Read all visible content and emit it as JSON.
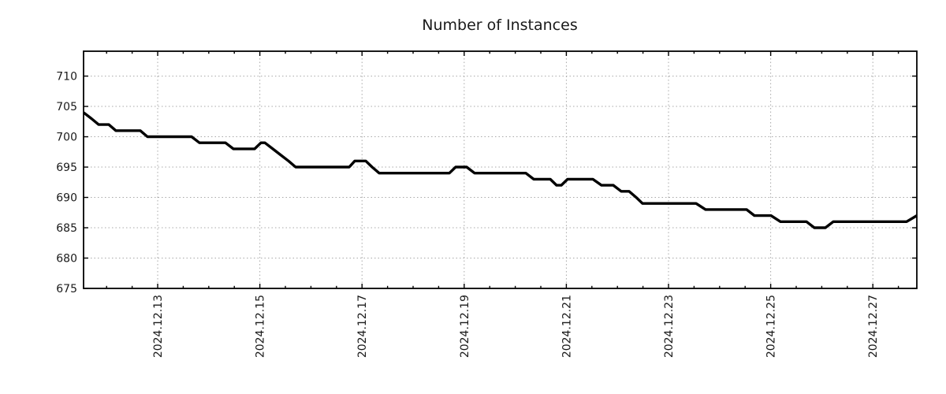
{
  "page": {
    "background_color": "#ffffff",
    "text_color": "#1a1a1a"
  },
  "chart_data": {
    "type": "line",
    "title": "Number of Instances",
    "xlabel": "",
    "ylabel": "",
    "legend": {
      "visible": false
    },
    "grid": {
      "visible": true,
      "style": "dotted",
      "color": "#a8a8a8"
    },
    "x_axis": {
      "unit": "date (day of 2024-12, decimal)",
      "range": [
        11.549,
        27.861
      ],
      "tick_values": [
        13,
        15,
        17,
        19,
        21,
        23,
        25,
        27
      ],
      "tick_labels": [
        "2024.12.13",
        "2024.12.15",
        "2024.12.17",
        "2024.12.19",
        "2024.12.21",
        "2024.12.23",
        "2024.12.25",
        "2024.12.27"
      ],
      "minor_tick_step": 0.5,
      "label_rotation_deg": -90
    },
    "y_axis": {
      "range": [
        675,
        714.1
      ],
      "tick_values": [
        675,
        680,
        685,
        690,
        695,
        700,
        705,
        710
      ],
      "tick_labels": [
        "675",
        "680",
        "685",
        "690",
        "695",
        "700",
        "705",
        "710"
      ]
    },
    "series": [
      {
        "name": "instances",
        "color": "#000000",
        "line_width": 3.4,
        "points": [
          [
            11.549,
            704
          ],
          [
            11.704,
            703
          ],
          [
            11.843,
            702
          ],
          [
            12.043,
            702
          ],
          [
            12.182,
            701
          ],
          [
            12.66,
            701
          ],
          [
            12.799,
            700
          ],
          [
            13.664,
            700
          ],
          [
            13.818,
            699
          ],
          [
            14.327,
            699
          ],
          [
            14.481,
            698
          ],
          [
            14.898,
            698
          ],
          [
            15.022,
            699
          ],
          [
            15.099,
            699
          ],
          [
            15.253,
            698
          ],
          [
            15.407,
            697
          ],
          [
            15.562,
            696
          ],
          [
            15.701,
            695
          ],
          [
            16.75,
            695
          ],
          [
            16.858,
            696
          ],
          [
            17.074,
            696
          ],
          [
            17.198,
            695
          ],
          [
            17.336,
            694
          ],
          [
            18.71,
            694
          ],
          [
            18.833,
            695
          ],
          [
            19.049,
            695
          ],
          [
            19.204,
            694
          ],
          [
            20.207,
            694
          ],
          [
            20.361,
            693
          ],
          [
            20.685,
            693
          ],
          [
            20.809,
            692
          ],
          [
            20.901,
            692
          ],
          [
            21.025,
            693
          ],
          [
            21.519,
            693
          ],
          [
            21.688,
            692
          ],
          [
            21.92,
            692
          ],
          [
            22.074,
            691
          ],
          [
            22.228,
            691
          ],
          [
            22.367,
            690
          ],
          [
            22.491,
            689
          ],
          [
            23.54,
            689
          ],
          [
            23.725,
            688
          ],
          [
            24.528,
            688
          ],
          [
            24.682,
            687
          ],
          [
            25.006,
            687
          ],
          [
            25.191,
            686
          ],
          [
            25.7,
            686
          ],
          [
            25.855,
            685
          ],
          [
            26.071,
            685
          ],
          [
            26.225,
            686
          ],
          [
            27.66,
            686
          ],
          [
            27.861,
            687
          ]
        ]
      }
    ]
  }
}
